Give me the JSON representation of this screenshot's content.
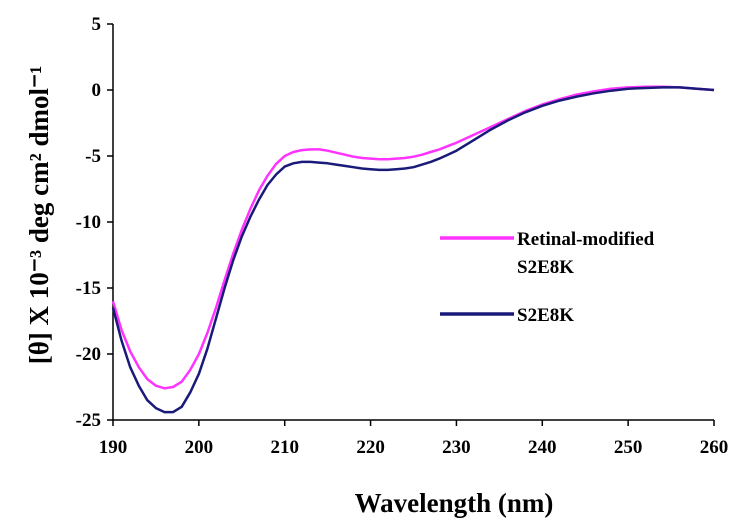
{
  "chart_data": {
    "type": "line",
    "title": "",
    "xlabel": "Wavelength (nm)",
    "ylabel": "[θ] X 10⁻³ deg cm² dmol⁻¹",
    "xlim": [
      190,
      260
    ],
    "ylim": [
      -25,
      5
    ],
    "x_ticks": [
      190,
      200,
      210,
      220,
      230,
      240,
      250,
      260
    ],
    "y_ticks": [
      5,
      0,
      -5,
      -10,
      -15,
      -20,
      -25
    ],
    "x_tick_labels": [
      "190",
      "200",
      "210",
      "220",
      "230",
      "240",
      "250",
      "260"
    ],
    "y_tick_labels": [
      "5",
      "0",
      "-5",
      "-10",
      "-15",
      "-20",
      "-25"
    ],
    "grid": false,
    "legend_position": "right",
    "series": [
      {
        "name": "Retinal-modified S2E8K",
        "color": "#ff33ff",
        "x": [
          190,
          191,
          192,
          193,
          194,
          195,
          196,
          197,
          198,
          199,
          200,
          201,
          202,
          203,
          204,
          205,
          206,
          207,
          208,
          209,
          210,
          211,
          212,
          213,
          214,
          215,
          216,
          217,
          218,
          219,
          220,
          221,
          222,
          223,
          224,
          225,
          226,
          227,
          228,
          229,
          230,
          232,
          234,
          236,
          238,
          240,
          242,
          244,
          246,
          248,
          250,
          252,
          254,
          256,
          258,
          260
        ],
        "y": [
          -16.0,
          -18.2,
          -19.8,
          -21.0,
          -21.9,
          -22.4,
          -22.6,
          -22.5,
          -22.1,
          -21.2,
          -20.0,
          -18.4,
          -16.5,
          -14.4,
          -12.4,
          -10.6,
          -9.0,
          -7.6,
          -6.5,
          -5.6,
          -5.0,
          -4.7,
          -4.55,
          -4.5,
          -4.5,
          -4.6,
          -4.75,
          -4.9,
          -5.05,
          -5.15,
          -5.2,
          -5.25,
          -5.25,
          -5.2,
          -5.15,
          -5.05,
          -4.9,
          -4.7,
          -4.5,
          -4.25,
          -4.0,
          -3.4,
          -2.8,
          -2.2,
          -1.6,
          -1.1,
          -0.7,
          -0.35,
          -0.1,
          0.1,
          0.2,
          0.25,
          0.25,
          0.2,
          0.1,
          0.0
        ]
      },
      {
        "name": "S2E8K",
        "color": "#1a1a7a",
        "x": [
          190,
          191,
          192,
          193,
          194,
          195,
          196,
          197,
          198,
          199,
          200,
          201,
          202,
          203,
          204,
          205,
          206,
          207,
          208,
          209,
          210,
          211,
          212,
          213,
          214,
          215,
          216,
          217,
          218,
          219,
          220,
          221,
          222,
          223,
          224,
          225,
          226,
          227,
          228,
          229,
          230,
          232,
          234,
          236,
          238,
          240,
          242,
          244,
          246,
          248,
          250,
          252,
          254,
          256,
          258,
          260
        ],
        "y": [
          -16.5,
          -19.0,
          -21.0,
          -22.4,
          -23.5,
          -24.1,
          -24.4,
          -24.4,
          -24.0,
          -22.9,
          -21.5,
          -19.6,
          -17.3,
          -15.0,
          -12.9,
          -11.1,
          -9.6,
          -8.3,
          -7.2,
          -6.4,
          -5.8,
          -5.55,
          -5.45,
          -5.45,
          -5.5,
          -5.55,
          -5.65,
          -5.75,
          -5.85,
          -5.95,
          -6.0,
          -6.05,
          -6.05,
          -6.0,
          -5.95,
          -5.85,
          -5.65,
          -5.45,
          -5.2,
          -4.9,
          -4.6,
          -3.8,
          -3.0,
          -2.3,
          -1.7,
          -1.2,
          -0.8,
          -0.5,
          -0.25,
          -0.05,
          0.1,
          0.15,
          0.2,
          0.2,
          0.1,
          0.0
        ]
      }
    ],
    "legend": {
      "entries": [
        {
          "lines": [
            "Retinal-modified",
            "S2E8K"
          ],
          "color": "#ff33ff"
        },
        {
          "lines": [
            "S2E8K"
          ],
          "color": "#1a1a7a"
        }
      ]
    }
  }
}
